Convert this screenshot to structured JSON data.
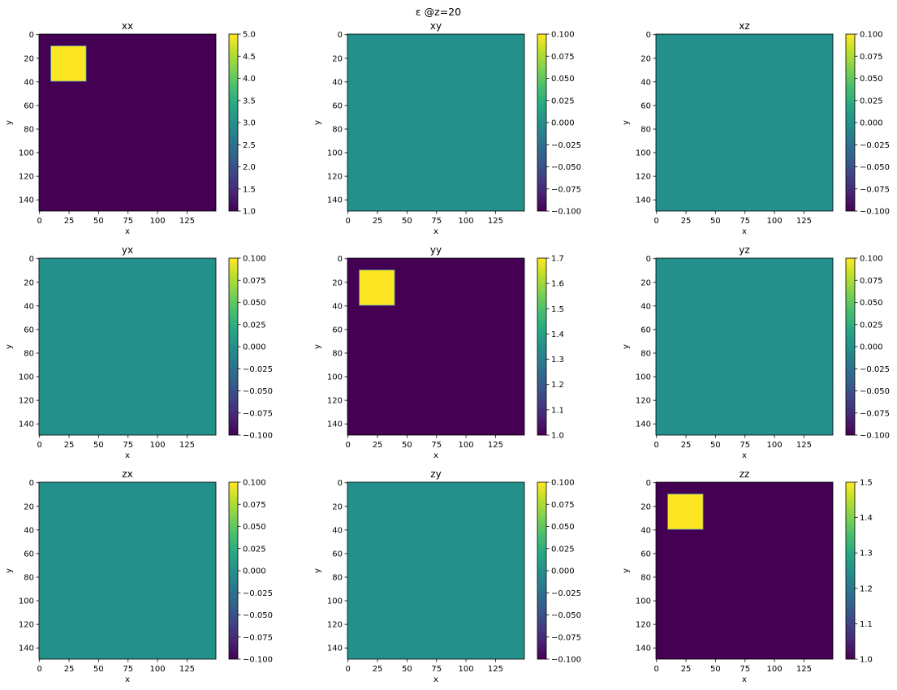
{
  "figure": {
    "suptitle": "ε @z=20"
  },
  "chart_data": [
    {
      "type": "heatmap",
      "title": "xx",
      "xlabel": "x",
      "ylabel": "y",
      "grid_size": [
        150,
        150
      ],
      "background_value": 1.0,
      "inclusions": [
        {
          "x_range": [
            10,
            40
          ],
          "y_range": [
            10,
            40
          ],
          "value": 5.0
        }
      ],
      "xticks": [
        "0",
        "25",
        "50",
        "75",
        "100",
        "125"
      ],
      "yticks": [
        "0",
        "20",
        "40",
        "60",
        "80",
        "100",
        "120",
        "140"
      ],
      "colorbar": {
        "min": 1.0,
        "max": 5.0,
        "ticks": [
          {
            "v": 1.0,
            "label": "1.0"
          },
          {
            "v": 1.5,
            "label": "1.5"
          },
          {
            "v": 2.0,
            "label": "2.0"
          },
          {
            "v": 2.5,
            "label": "2.5"
          },
          {
            "v": 3.0,
            "label": "3.0"
          },
          {
            "v": 3.5,
            "label": "3.5"
          },
          {
            "v": 4.0,
            "label": "4.0"
          },
          {
            "v": 4.5,
            "label": "4.5"
          },
          {
            "v": 5.0,
            "label": "5.0"
          }
        ]
      }
    },
    {
      "type": "heatmap",
      "title": "xy",
      "xlabel": "x",
      "ylabel": "y",
      "grid_size": [
        150,
        150
      ],
      "background_value": 0.0,
      "inclusions": [],
      "xticks": [
        "0",
        "25",
        "50",
        "75",
        "100",
        "125"
      ],
      "yticks": [
        "0",
        "20",
        "40",
        "60",
        "80",
        "100",
        "120",
        "140"
      ],
      "colorbar": {
        "min": -0.1,
        "max": 0.1,
        "ticks": [
          {
            "v": -0.1,
            "label": "−0.100"
          },
          {
            "v": -0.075,
            "label": "−0.075"
          },
          {
            "v": -0.05,
            "label": "−0.050"
          },
          {
            "v": -0.025,
            "label": "−0.025"
          },
          {
            "v": 0,
            "label": "0.000"
          },
          {
            "v": 0.025,
            "label": "0.025"
          },
          {
            "v": 0.05,
            "label": "0.050"
          },
          {
            "v": 0.075,
            "label": "0.075"
          },
          {
            "v": 0.1,
            "label": "0.100"
          }
        ]
      }
    },
    {
      "type": "heatmap",
      "title": "xz",
      "xlabel": "x",
      "ylabel": "y",
      "grid_size": [
        150,
        150
      ],
      "background_value": 0.0,
      "inclusions": [],
      "xticks": [
        "0",
        "25",
        "50",
        "75",
        "100",
        "125"
      ],
      "yticks": [
        "0",
        "20",
        "40",
        "60",
        "80",
        "100",
        "120",
        "140"
      ],
      "colorbar": {
        "min": -0.1,
        "max": 0.1,
        "ticks": [
          {
            "v": -0.1,
            "label": "−0.100"
          },
          {
            "v": -0.075,
            "label": "−0.075"
          },
          {
            "v": -0.05,
            "label": "−0.050"
          },
          {
            "v": -0.025,
            "label": "−0.025"
          },
          {
            "v": 0,
            "label": "0.000"
          },
          {
            "v": 0.025,
            "label": "0.025"
          },
          {
            "v": 0.05,
            "label": "0.050"
          },
          {
            "v": 0.075,
            "label": "0.075"
          },
          {
            "v": 0.1,
            "label": "0.100"
          }
        ]
      }
    },
    {
      "type": "heatmap",
      "title": "yx",
      "xlabel": "x",
      "ylabel": "y",
      "grid_size": [
        150,
        150
      ],
      "background_value": 0.0,
      "inclusions": [],
      "xticks": [
        "0",
        "25",
        "50",
        "75",
        "100",
        "125"
      ],
      "yticks": [
        "0",
        "20",
        "40",
        "60",
        "80",
        "100",
        "120",
        "140"
      ],
      "colorbar": {
        "min": -0.1,
        "max": 0.1,
        "ticks": [
          {
            "v": -0.1,
            "label": "−0.100"
          },
          {
            "v": -0.075,
            "label": "−0.075"
          },
          {
            "v": -0.05,
            "label": "−0.050"
          },
          {
            "v": -0.025,
            "label": "−0.025"
          },
          {
            "v": 0,
            "label": "0.000"
          },
          {
            "v": 0.025,
            "label": "0.025"
          },
          {
            "v": 0.05,
            "label": "0.050"
          },
          {
            "v": 0.075,
            "label": "0.075"
          },
          {
            "v": 0.1,
            "label": "0.100"
          }
        ]
      }
    },
    {
      "type": "heatmap",
      "title": "yy",
      "xlabel": "x",
      "ylabel": "y",
      "grid_size": [
        150,
        150
      ],
      "background_value": 1.0,
      "inclusions": [
        {
          "x_range": [
            10,
            40
          ],
          "y_range": [
            10,
            40
          ],
          "value": 1.7
        }
      ],
      "xticks": [
        "0",
        "25",
        "50",
        "75",
        "100",
        "125"
      ],
      "yticks": [
        "0",
        "20",
        "40",
        "60",
        "80",
        "100",
        "120",
        "140"
      ],
      "colorbar": {
        "min": 1.0,
        "max": 1.7,
        "ticks": [
          {
            "v": 1.0,
            "label": "1.0"
          },
          {
            "v": 1.1,
            "label": "1.1"
          },
          {
            "v": 1.2,
            "label": "1.2"
          },
          {
            "v": 1.3,
            "label": "1.3"
          },
          {
            "v": 1.4,
            "label": "1.4"
          },
          {
            "v": 1.5,
            "label": "1.5"
          },
          {
            "v": 1.6,
            "label": "1.6"
          },
          {
            "v": 1.7,
            "label": "1.7"
          }
        ]
      }
    },
    {
      "type": "heatmap",
      "title": "yz",
      "xlabel": "x",
      "ylabel": "y",
      "grid_size": [
        150,
        150
      ],
      "background_value": 0.0,
      "inclusions": [],
      "xticks": [
        "0",
        "25",
        "50",
        "75",
        "100",
        "125"
      ],
      "yticks": [
        "0",
        "20",
        "40",
        "60",
        "80",
        "100",
        "120",
        "140"
      ],
      "colorbar": {
        "min": -0.1,
        "max": 0.1,
        "ticks": [
          {
            "v": -0.1,
            "label": "−0.100"
          },
          {
            "v": -0.075,
            "label": "−0.075"
          },
          {
            "v": -0.05,
            "label": "−0.050"
          },
          {
            "v": -0.025,
            "label": "−0.025"
          },
          {
            "v": 0,
            "label": "0.000"
          },
          {
            "v": 0.025,
            "label": "0.025"
          },
          {
            "v": 0.05,
            "label": "0.050"
          },
          {
            "v": 0.075,
            "label": "0.075"
          },
          {
            "v": 0.1,
            "label": "0.100"
          }
        ]
      }
    },
    {
      "type": "heatmap",
      "title": "zx",
      "xlabel": "x",
      "ylabel": "y",
      "grid_size": [
        150,
        150
      ],
      "background_value": 0.0,
      "inclusions": [],
      "xticks": [
        "0",
        "25",
        "50",
        "75",
        "100",
        "125"
      ],
      "yticks": [
        "0",
        "20",
        "40",
        "60",
        "80",
        "100",
        "120",
        "140"
      ],
      "colorbar": {
        "min": -0.1,
        "max": 0.1,
        "ticks": [
          {
            "v": -0.1,
            "label": "−0.100"
          },
          {
            "v": -0.075,
            "label": "−0.075"
          },
          {
            "v": -0.05,
            "label": "−0.050"
          },
          {
            "v": -0.025,
            "label": "−0.025"
          },
          {
            "v": 0,
            "label": "0.000"
          },
          {
            "v": 0.025,
            "label": "0.025"
          },
          {
            "v": 0.05,
            "label": "0.050"
          },
          {
            "v": 0.075,
            "label": "0.075"
          },
          {
            "v": 0.1,
            "label": "0.100"
          }
        ]
      }
    },
    {
      "type": "heatmap",
      "title": "zy",
      "xlabel": "x",
      "ylabel": "y",
      "grid_size": [
        150,
        150
      ],
      "background_value": 0.0,
      "inclusions": [],
      "xticks": [
        "0",
        "25",
        "50",
        "75",
        "100",
        "125"
      ],
      "yticks": [
        "0",
        "20",
        "40",
        "60",
        "80",
        "100",
        "120",
        "140"
      ],
      "colorbar": {
        "min": -0.1,
        "max": 0.1,
        "ticks": [
          {
            "v": -0.1,
            "label": "−0.100"
          },
          {
            "v": -0.075,
            "label": "−0.075"
          },
          {
            "v": -0.05,
            "label": "−0.050"
          },
          {
            "v": -0.025,
            "label": "−0.025"
          },
          {
            "v": 0,
            "label": "0.000"
          },
          {
            "v": 0.025,
            "label": "0.025"
          },
          {
            "v": 0.05,
            "label": "0.050"
          },
          {
            "v": 0.075,
            "label": "0.075"
          },
          {
            "v": 0.1,
            "label": "0.100"
          }
        ]
      }
    },
    {
      "type": "heatmap",
      "title": "zz",
      "xlabel": "x",
      "ylabel": "y",
      "grid_size": [
        150,
        150
      ],
      "background_value": 1.0,
      "inclusions": [
        {
          "x_range": [
            10,
            40
          ],
          "y_range": [
            10,
            40
          ],
          "value": 1.5
        }
      ],
      "xticks": [
        "0",
        "25",
        "50",
        "75",
        "100",
        "125"
      ],
      "yticks": [
        "0",
        "20",
        "40",
        "60",
        "80",
        "100",
        "120",
        "140"
      ],
      "colorbar": {
        "min": 1.0,
        "max": 1.5,
        "ticks": [
          {
            "v": 1.0,
            "label": "1.0"
          },
          {
            "v": 1.1,
            "label": "1.1"
          },
          {
            "v": 1.2,
            "label": "1.2"
          },
          {
            "v": 1.3,
            "label": "1.3"
          },
          {
            "v": 1.4,
            "label": "1.4"
          },
          {
            "v": 1.5,
            "label": "1.5"
          }
        ]
      }
    }
  ],
  "colormap": {
    "name": "viridis",
    "low": "#440154",
    "mid": "#21918c",
    "high": "#fde725"
  }
}
